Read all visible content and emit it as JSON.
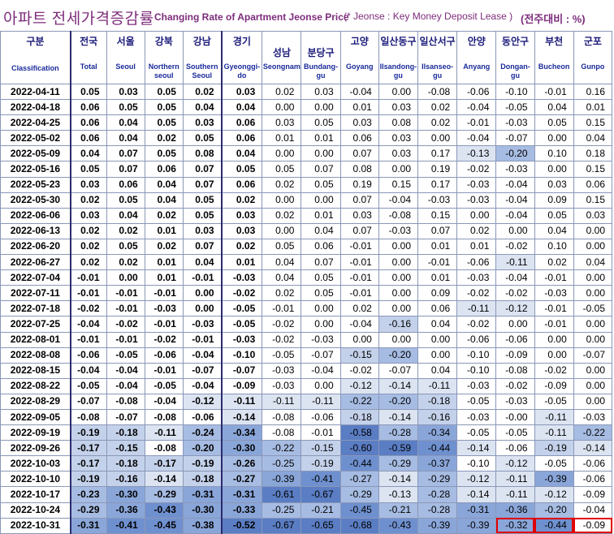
{
  "title": {
    "korean": "아파트 전세가격증감률",
    "english": "Changing Rate of Apartment Jeonse Price",
    "note": "(* Jeonse : Key Money Deposit Lease )",
    "unit": "(전주대비 : %)"
  },
  "columns": [
    {
      "kr": "구분",
      "en": "Classification"
    },
    {
      "kr": "전국",
      "en": "Total"
    },
    {
      "kr": "서울",
      "en": "Seoul"
    },
    {
      "kr": "강북",
      "en": "Northern seoul"
    },
    {
      "kr": "강남",
      "en": "Southern Seoul"
    },
    {
      "kr": "경기",
      "en": "Gyeonggi-do"
    },
    {
      "kr": "성남",
      "en": "Seongnam"
    },
    {
      "kr": "분당구",
      "en": "Bundang-gu"
    },
    {
      "kr": "고양",
      "en": "Goyang"
    },
    {
      "kr": "일산동구",
      "en": "Ilsandong-gu"
    },
    {
      "kr": "일산서구",
      "en": "Ilsanseo-gu"
    },
    {
      "kr": "안양",
      "en": "Anyang"
    },
    {
      "kr": "동안구",
      "en": "Dongan-gu"
    },
    {
      "kr": "부천",
      "en": "Bucheon"
    },
    {
      "kr": "군포",
      "en": "Gunpo"
    }
  ],
  "rows": [
    {
      "date": "2022-04-11",
      "values": [
        "0.05",
        "0.03",
        "0.05",
        "0.02",
        "0.03",
        "0.02",
        "0.03",
        "-0.04",
        "0.00",
        "-0.08",
        "-0.06",
        "-0.10",
        "-0.01",
        "0.16"
      ]
    },
    {
      "date": "2022-04-18",
      "values": [
        "0.06",
        "0.05",
        "0.05",
        "0.04",
        "0.04",
        "0.00",
        "0.00",
        "0.01",
        "0.03",
        "0.02",
        "-0.04",
        "-0.05",
        "0.04",
        "0.01"
      ]
    },
    {
      "date": "2022-04-25",
      "values": [
        "0.06",
        "0.04",
        "0.05",
        "0.03",
        "0.06",
        "0.03",
        "0.05",
        "0.03",
        "0.08",
        "0.02",
        "-0.01",
        "-0.03",
        "0.05",
        "0.15"
      ]
    },
    {
      "date": "2022-05-02",
      "values": [
        "0.06",
        "0.04",
        "0.02",
        "0.05",
        "0.06",
        "0.01",
        "0.01",
        "0.06",
        "0.03",
        "0.00",
        "-0.04",
        "-0.07",
        "0.00",
        "0.04"
      ]
    },
    {
      "date": "2022-05-09",
      "values": [
        "0.04",
        "0.07",
        "0.05",
        "0.08",
        "0.04",
        "0.00",
        "0.00",
        "0.07",
        "0.03",
        "0.17",
        "-0.13",
        "-0.20",
        "0.10",
        "0.18"
      ]
    },
    {
      "date": "2022-05-16",
      "values": [
        "0.05",
        "0.07",
        "0.06",
        "0.07",
        "0.05",
        "0.05",
        "0.07",
        "0.08",
        "0.00",
        "0.19",
        "-0.02",
        "-0.03",
        "0.00",
        "0.15"
      ]
    },
    {
      "date": "2022-05-23",
      "values": [
        "0.03",
        "0.06",
        "0.04",
        "0.07",
        "0.06",
        "0.02",
        "0.05",
        "0.19",
        "0.15",
        "0.17",
        "-0.03",
        "-0.04",
        "0.03",
        "0.06"
      ]
    },
    {
      "date": "2022-05-30",
      "values": [
        "0.02",
        "0.05",
        "0.04",
        "0.05",
        "0.02",
        "0.00",
        "0.00",
        "0.07",
        "-0.04",
        "-0.03",
        "-0.03",
        "-0.04",
        "0.09",
        "0.15"
      ]
    },
    {
      "date": "2022-06-06",
      "values": [
        "0.03",
        "0.04",
        "0.02",
        "0.05",
        "0.03",
        "0.02",
        "0.01",
        "0.03",
        "-0.08",
        "0.15",
        "0.00",
        "-0.04",
        "0.05",
        "0.03"
      ]
    },
    {
      "date": "2022-06-13",
      "values": [
        "0.02",
        "0.02",
        "0.01",
        "0.03",
        "0.03",
        "0.00",
        "0.04",
        "0.07",
        "-0.03",
        "0.07",
        "0.02",
        "0.00",
        "0.04",
        "0.00"
      ]
    },
    {
      "date": "2022-06-20",
      "values": [
        "0.02",
        "0.05",
        "0.02",
        "0.07",
        "0.02",
        "0.05",
        "0.06",
        "-0.01",
        "0.00",
        "0.01",
        "0.01",
        "-0.02",
        "0.10",
        "0.00"
      ]
    },
    {
      "date": "2022-06-27",
      "values": [
        "0.02",
        "0.02",
        "0.01",
        "0.04",
        "0.01",
        "0.04",
        "0.07",
        "-0.01",
        "0.00",
        "-0.01",
        "-0.06",
        "-0.11",
        "0.02",
        "0.04"
      ]
    },
    {
      "date": "2022-07-04",
      "values": [
        "-0.01",
        "0.00",
        "0.01",
        "-0.01",
        "-0.03",
        "0.04",
        "0.05",
        "-0.01",
        "0.00",
        "0.01",
        "-0.03",
        "-0.04",
        "-0.01",
        "0.00"
      ]
    },
    {
      "date": "2022-07-11",
      "values": [
        "-0.01",
        "-0.01",
        "-0.01",
        "0.00",
        "-0.02",
        "0.02",
        "0.05",
        "-0.01",
        "0.00",
        "0.09",
        "-0.02",
        "-0.02",
        "-0.03",
        "0.00"
      ]
    },
    {
      "date": "2022-07-18",
      "values": [
        "-0.02",
        "-0.01",
        "-0.03",
        "0.00",
        "-0.05",
        "-0.01",
        "0.00",
        "0.02",
        "0.00",
        "0.06",
        "-0.11",
        "-0.12",
        "-0.01",
        "-0.05"
      ]
    },
    {
      "date": "2022-07-25",
      "values": [
        "-0.04",
        "-0.02",
        "-0.01",
        "-0.03",
        "-0.05",
        "-0.02",
        "0.00",
        "-0.04",
        "-0.16",
        "0.04",
        "-0.02",
        "0.00",
        "-0.01",
        "0.00"
      ]
    },
    {
      "date": "2022-08-01",
      "values": [
        "-0.01",
        "-0.01",
        "-0.02",
        "-0.01",
        "-0.03",
        "-0.02",
        "-0.03",
        "0.00",
        "0.00",
        "0.00",
        "-0.06",
        "-0.06",
        "0.00",
        "0.00"
      ]
    },
    {
      "date": "2022-08-08",
      "values": [
        "-0.06",
        "-0.05",
        "-0.06",
        "-0.04",
        "-0.10",
        "-0.05",
        "-0.07",
        "-0.15",
        "-0.20",
        "0.00",
        "-0.10",
        "-0.09",
        "0.00",
        "-0.07"
      ]
    },
    {
      "date": "2022-08-15",
      "values": [
        "-0.04",
        "-0.04",
        "-0.01",
        "-0.07",
        "-0.07",
        "-0.03",
        "-0.04",
        "-0.02",
        "-0.07",
        "0.04",
        "-0.10",
        "-0.08",
        "-0.02",
        "0.00"
      ]
    },
    {
      "date": "2022-08-22",
      "values": [
        "-0.05",
        "-0.04",
        "-0.05",
        "-0.04",
        "-0.09",
        "-0.03",
        "0.00",
        "-0.12",
        "-0.14",
        "-0.11",
        "-0.03",
        "-0.02",
        "-0.09",
        "0.00"
      ]
    },
    {
      "date": "2022-08-29",
      "values": [
        "-0.07",
        "-0.08",
        "-0.04",
        "-0.12",
        "-0.11",
        "-0.11",
        "-0.11",
        "-0.22",
        "-0.20",
        "-0.18",
        "-0.05",
        "-0.03",
        "-0.05",
        "0.00"
      ]
    },
    {
      "date": "2022-09-05",
      "values": [
        "-0.08",
        "-0.07",
        "-0.08",
        "-0.06",
        "-0.14",
        "-0.08",
        "-0.06",
        "-0.18",
        "-0.14",
        "-0.16",
        "-0.03",
        "-0.00",
        "-0.11",
        "-0.03"
      ]
    },
    {
      "date": "2022-09-19",
      "values": [
        "-0.19",
        "-0.18",
        "-0.11",
        "-0.24",
        "-0.34",
        "-0.08",
        "-0.01",
        "-0.58",
        "-0.28",
        "-0.34",
        "-0.05",
        "-0.05",
        "-0.11",
        "-0.22"
      ]
    },
    {
      "date": "2022-09-26",
      "values": [
        "-0.17",
        "-0.15",
        "-0.08",
        "-0.20",
        "-0.30",
        "-0.22",
        "-0.15",
        "-0.60",
        "-0.59",
        "-0.44",
        "-0.14",
        "-0.06",
        "-0.19",
        "-0.14"
      ]
    },
    {
      "date": "2022-10-03",
      "values": [
        "-0.17",
        "-0.18",
        "-0.17",
        "-0.19",
        "-0.26",
        "-0.25",
        "-0.19",
        "-0.44",
        "-0.29",
        "-0.37",
        "-0.10",
        "-0.12",
        "-0.05",
        "-0.06"
      ]
    },
    {
      "date": "2022-10-10",
      "values": [
        "-0.19",
        "-0.16",
        "-0.14",
        "-0.18",
        "-0.27",
        "-0.39",
        "-0.41",
        "-0.27",
        "-0.14",
        "-0.29",
        "-0.12",
        "-0.11",
        "-0.39",
        "-0.06"
      ]
    },
    {
      "date": "2022-10-17",
      "values": [
        "-0.23",
        "-0.30",
        "-0.29",
        "-0.31",
        "-0.31",
        "-0.61",
        "-0.67",
        "-0.29",
        "-0.13",
        "-0.28",
        "-0.14",
        "-0.11",
        "-0.12",
        "-0.09"
      ]
    },
    {
      "date": "2022-10-24",
      "values": [
        "-0.29",
        "-0.36",
        "-0.43",
        "-0.30",
        "-0.33",
        "-0.25",
        "-0.21",
        "-0.45",
        "-0.21",
        "-0.28",
        "-0.31",
        "-0.36",
        "-0.20",
        "-0.04"
      ]
    },
    {
      "date": "2022-10-31",
      "values": [
        "-0.31",
        "-0.41",
        "-0.45",
        "-0.38",
        "-0.52",
        "-0.67",
        "-0.65",
        "-0.68",
        "-0.43",
        "-0.39",
        "-0.39",
        "-0.32",
        "-0.44",
        "-0.09"
      ]
    }
  ],
  "colors": {
    "title": "#7d2c7b",
    "header_text": "#1a1a7a",
    "header_bg": "#ffffff",
    "highlight_border": "#e00000",
    "shade_scale": [
      "#ffffff",
      "#dce4f2",
      "#c4d1ea",
      "#a7bce2",
      "#8aa6d9",
      "#6f90cf",
      "#5a7dc3"
    ]
  },
  "highlighted_cells": [
    {
      "row": 28,
      "col": 12
    },
    {
      "row": 28,
      "col": 13
    },
    {
      "row": 28,
      "col": 14
    }
  ]
}
